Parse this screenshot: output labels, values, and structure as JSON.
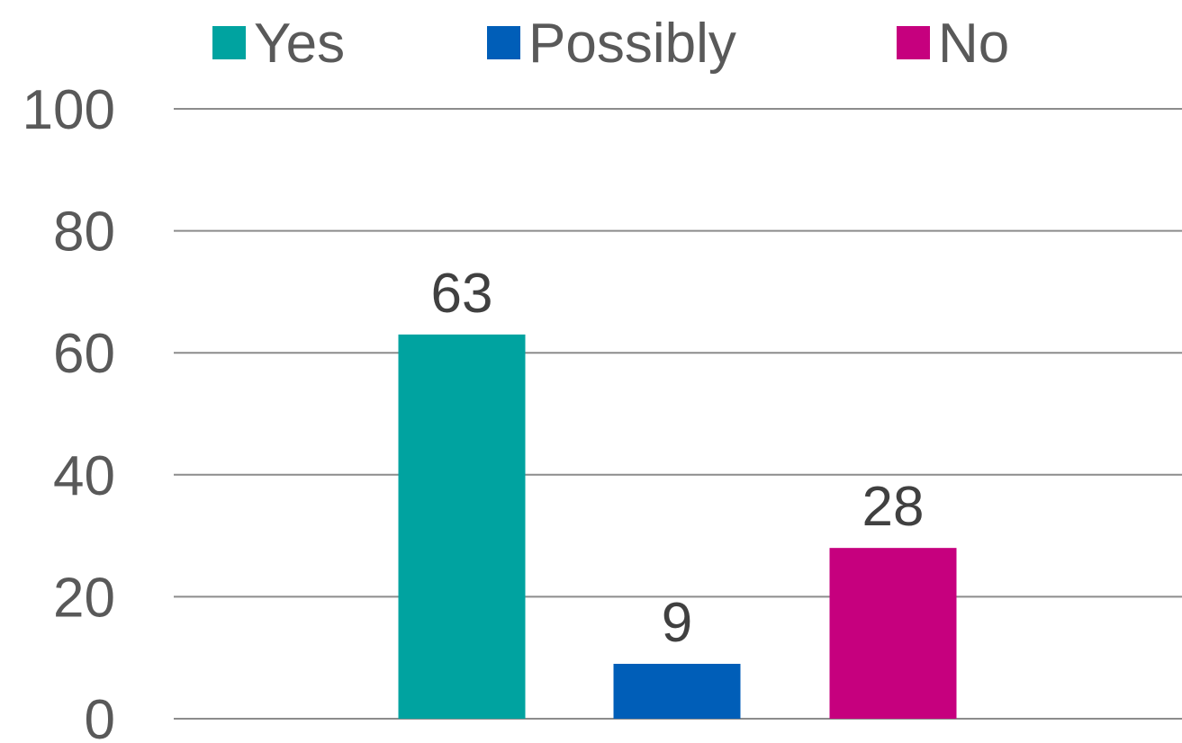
{
  "chart_data": {
    "type": "bar",
    "series": [
      {
        "name": "Yes",
        "value": 63,
        "color": "#00A3A0"
      },
      {
        "name": "Possibly",
        "value": 9,
        "color": "#005EB8"
      },
      {
        "name": "No",
        "value": 28,
        "color": "#C6007E"
      }
    ],
    "ylim": [
      0,
      100
    ],
    "yticks": [
      "0",
      "20",
      "40",
      "60",
      "80",
      "100"
    ],
    "grid": true,
    "legend_position": "top",
    "data_labels": true
  }
}
